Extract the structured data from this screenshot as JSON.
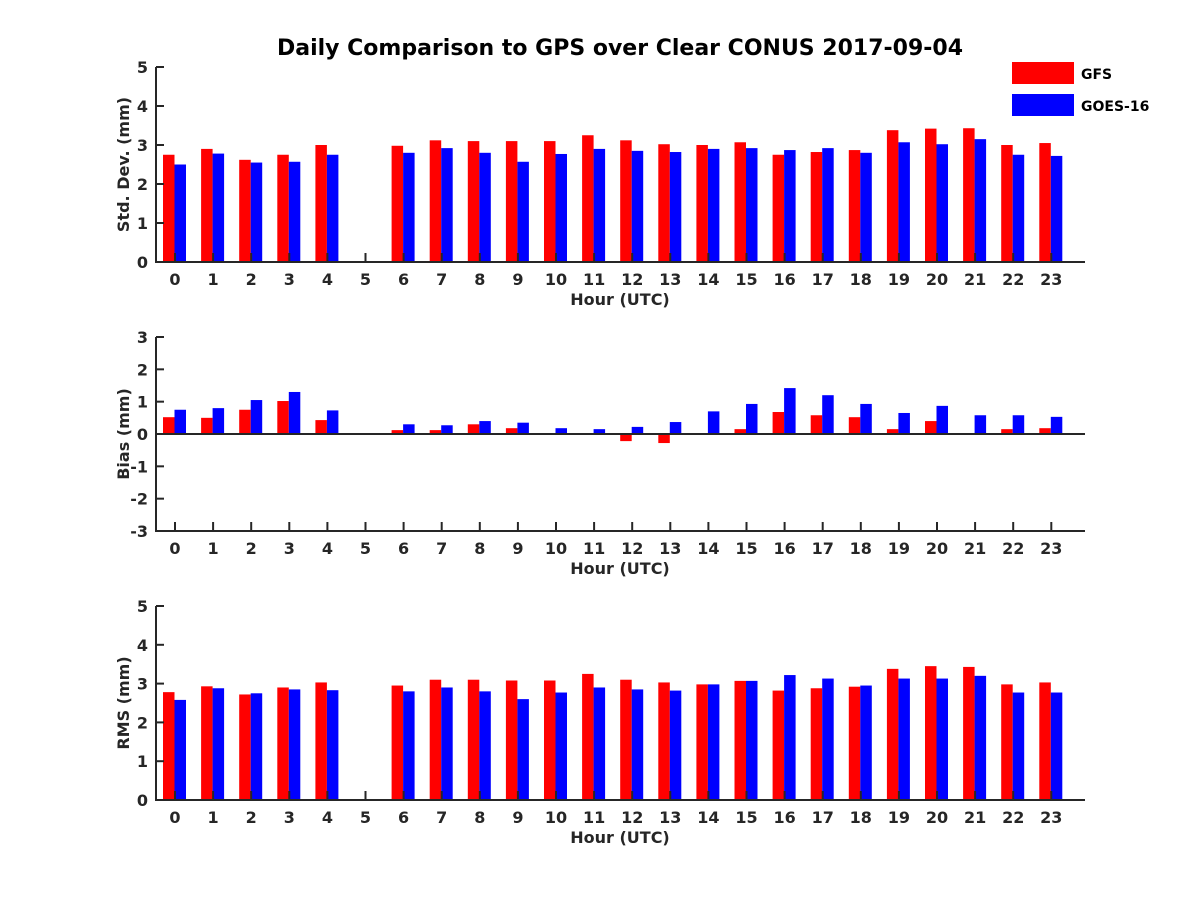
{
  "chart_data": {
    "type": "bar",
    "title": "Daily Comparison to GPS over Clear CONUS 2017-09-04",
    "colors": {
      "GFS": "#ff0000",
      "GOES-16": "#0000ff",
      "axis": "#262626"
    },
    "legend": {
      "location": "top-right",
      "entries": [
        {
          "name": "GFS",
          "color": "#ff0000"
        },
        {
          "name": "GOES-16",
          "color": "#0000ff"
        }
      ]
    },
    "panels": [
      {
        "key": "std",
        "ylabel": "Std. Dev. (mm)",
        "xlabel": "Hour (UTC)",
        "ylim": [
          0,
          5
        ],
        "yticks": [
          0,
          1,
          2,
          3,
          4,
          5
        ],
        "categories": [
          "0",
          "1",
          "2",
          "3",
          "4",
          "5",
          "6",
          "7",
          "8",
          "9",
          "10",
          "11",
          "12",
          "13",
          "14",
          "15",
          "16",
          "17",
          "18",
          "19",
          "20",
          "21",
          "22",
          "23"
        ],
        "series": [
          {
            "name": "GFS",
            "values": [
              2.75,
              2.9,
              2.62,
              2.75,
              3.0,
              null,
              2.98,
              3.12,
              3.1,
              3.1,
              3.1,
              3.25,
              3.12,
              3.02,
              3.0,
              3.07,
              2.75,
              2.82,
              2.87,
              3.38,
              3.42,
              3.43,
              3.0,
              3.05
            ]
          },
          {
            "name": "GOES-16",
            "values": [
              2.5,
              2.78,
              2.55,
              2.57,
              2.75,
              null,
              2.8,
              2.92,
              2.8,
              2.57,
              2.77,
              2.9,
              2.85,
              2.82,
              2.9,
              2.92,
              2.87,
              2.92,
              2.8,
              3.07,
              3.02,
              3.15,
              2.75,
              2.72
            ]
          }
        ]
      },
      {
        "key": "bias",
        "ylabel": "Bias (mm)",
        "xlabel": "Hour (UTC)",
        "ylim": [
          -3,
          3
        ],
        "yticks": [
          -3,
          -2,
          -1,
          0,
          1,
          2,
          3
        ],
        "categories": [
          "0",
          "1",
          "2",
          "3",
          "4",
          "5",
          "6",
          "7",
          "8",
          "9",
          "10",
          "11",
          "12",
          "13",
          "14",
          "15",
          "16",
          "17",
          "18",
          "19",
          "20",
          "21",
          "22",
          "23"
        ],
        "series": [
          {
            "name": "GFS",
            "values": [
              0.52,
              0.5,
              0.75,
              1.02,
              0.43,
              null,
              0.12,
              0.12,
              0.3,
              0.18,
              0.02,
              -0.03,
              -0.22,
              -0.28,
              0.03,
              0.15,
              0.68,
              0.58,
              0.52,
              0.15,
              0.4,
              0.03,
              0.15,
              0.18
            ]
          },
          {
            "name": "GOES-16",
            "values": [
              0.75,
              0.8,
              1.05,
              1.3,
              0.73,
              null,
              0.3,
              0.27,
              0.4,
              0.35,
              0.18,
              0.15,
              0.22,
              0.37,
              0.7,
              0.93,
              1.42,
              1.2,
              0.93,
              0.65,
              0.87,
              0.58,
              0.58,
              0.53
            ]
          }
        ]
      },
      {
        "key": "rms",
        "ylabel": "RMS (mm)",
        "xlabel": "Hour (UTC)",
        "ylim": [
          0,
          5
        ],
        "yticks": [
          0,
          1,
          2,
          3,
          4,
          5
        ],
        "categories": [
          "0",
          "1",
          "2",
          "3",
          "4",
          "5",
          "6",
          "7",
          "8",
          "9",
          "10",
          "11",
          "12",
          "13",
          "14",
          "15",
          "16",
          "17",
          "18",
          "19",
          "20",
          "21",
          "22",
          "23"
        ],
        "series": [
          {
            "name": "GFS",
            "values": [
              2.78,
              2.93,
              2.72,
              2.9,
              3.03,
              null,
              2.95,
              3.1,
              3.1,
              3.08,
              3.08,
              3.25,
              3.1,
              3.03,
              2.98,
              3.07,
              2.82,
              2.88,
              2.92,
              3.38,
              3.45,
              3.43,
              2.98,
              3.03
            ]
          },
          {
            "name": "GOES-16",
            "values": [
              2.58,
              2.88,
              2.75,
              2.85,
              2.83,
              null,
              2.8,
              2.9,
              2.8,
              2.6,
              2.77,
              2.9,
              2.85,
              2.82,
              2.98,
              3.07,
              3.22,
              3.13,
              2.95,
              3.13,
              3.13,
              3.2,
              2.77,
              2.77
            ]
          }
        ]
      }
    ]
  }
}
